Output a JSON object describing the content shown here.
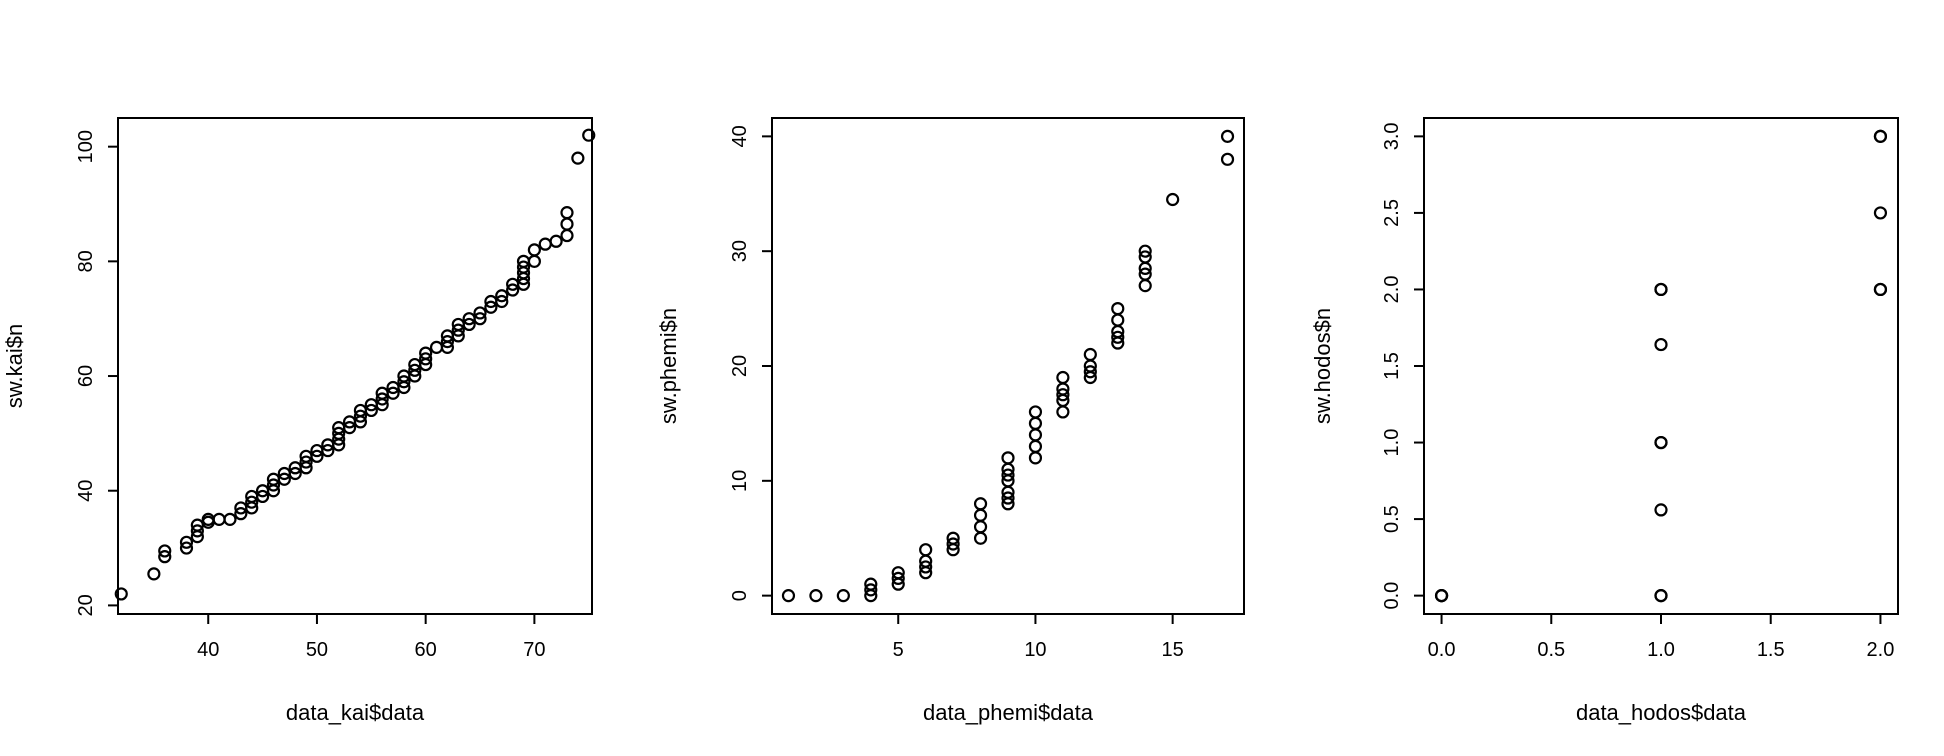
{
  "chart_data": [
    {
      "type": "scatter",
      "xlabel": "data_kai$data",
      "ylabel": "sw.kai$n",
      "xlim": [
        31.7,
        75.3
      ],
      "ylim": [
        18.5,
        105
      ],
      "xticks": [
        40,
        50,
        60,
        70
      ],
      "yticks": [
        20,
        40,
        60,
        80,
        100
      ],
      "points": [
        [
          32,
          22
        ],
        [
          35,
          25.5
        ],
        [
          36,
          28.5
        ],
        [
          36,
          29.5
        ],
        [
          38,
          30
        ],
        [
          38,
          31
        ],
        [
          39,
          32
        ],
        [
          39,
          33
        ],
        [
          39,
          34
        ],
        [
          40,
          34.5
        ],
        [
          40,
          35
        ],
        [
          41,
          35
        ],
        [
          42,
          35
        ],
        [
          43,
          36
        ],
        [
          43,
          37
        ],
        [
          44,
          37
        ],
        [
          44,
          38
        ],
        [
          44,
          39
        ],
        [
          45,
          39
        ],
        [
          45,
          40
        ],
        [
          46,
          40
        ],
        [
          46,
          41
        ],
        [
          46,
          42
        ],
        [
          47,
          42
        ],
        [
          47,
          43
        ],
        [
          48,
          43
        ],
        [
          48,
          44
        ],
        [
          49,
          44
        ],
        [
          49,
          45
        ],
        [
          49,
          46
        ],
        [
          50,
          46
        ],
        [
          50,
          47
        ],
        [
          51,
          47
        ],
        [
          51,
          48
        ],
        [
          52,
          48
        ],
        [
          52,
          49
        ],
        [
          52,
          50
        ],
        [
          52,
          51
        ],
        [
          53,
          51
        ],
        [
          53,
          52
        ],
        [
          54,
          52
        ],
        [
          54,
          53
        ],
        [
          54,
          54
        ],
        [
          55,
          54
        ],
        [
          55,
          55
        ],
        [
          56,
          55
        ],
        [
          56,
          56
        ],
        [
          56,
          57
        ],
        [
          57,
          57
        ],
        [
          57,
          58
        ],
        [
          58,
          58
        ],
        [
          58,
          59
        ],
        [
          58,
          60
        ],
        [
          59,
          60
        ],
        [
          59,
          61
        ],
        [
          59,
          62
        ],
        [
          60,
          62
        ],
        [
          60,
          63
        ],
        [
          60,
          64
        ],
        [
          61,
          65
        ],
        [
          62,
          65
        ],
        [
          62,
          66
        ],
        [
          62,
          67
        ],
        [
          63,
          67
        ],
        [
          63,
          68
        ],
        [
          63,
          69
        ],
        [
          64,
          69
        ],
        [
          64,
          70
        ],
        [
          65,
          70
        ],
        [
          65,
          71
        ],
        [
          66,
          72
        ],
        [
          66,
          73
        ],
        [
          67,
          73
        ],
        [
          67,
          74
        ],
        [
          68,
          75
        ],
        [
          68,
          76
        ],
        [
          69,
          76
        ],
        [
          69,
          77
        ],
        [
          69,
          78
        ],
        [
          69,
          79
        ],
        [
          69,
          80
        ],
        [
          70,
          80
        ],
        [
          70,
          82
        ],
        [
          71,
          83
        ],
        [
          72,
          83.5
        ],
        [
          73,
          84.5
        ],
        [
          73,
          86.5
        ],
        [
          73,
          88.5
        ],
        [
          74,
          98
        ],
        [
          75,
          102
        ]
      ]
    },
    {
      "type": "scatter",
      "xlabel": "data_phemi$data",
      "ylabel": "sw.phemi$n",
      "xlim": [
        0.4,
        17.6
      ],
      "ylim": [
        -1.6,
        41.6
      ],
      "xticks": [
        5,
        10,
        15
      ],
      "yticks": [
        0,
        10,
        20,
        30,
        40
      ],
      "points": [
        [
          1,
          0
        ],
        [
          2,
          0
        ],
        [
          3,
          0
        ],
        [
          4,
          0
        ],
        [
          4,
          0.5
        ],
        [
          4,
          1
        ],
        [
          5,
          1
        ],
        [
          5,
          1.5
        ],
        [
          5,
          2
        ],
        [
          6,
          2
        ],
        [
          6,
          2.5
        ],
        [
          6,
          3
        ],
        [
          6,
          4
        ],
        [
          7,
          4
        ],
        [
          7,
          4.5
        ],
        [
          7,
          5
        ],
        [
          8,
          5
        ],
        [
          8,
          6
        ],
        [
          8,
          7
        ],
        [
          8,
          8
        ],
        [
          9,
          8
        ],
        [
          9,
          8.5
        ],
        [
          9,
          9
        ],
        [
          9,
          10
        ],
        [
          9,
          10.5
        ],
        [
          9,
          11
        ],
        [
          9,
          12
        ],
        [
          10,
          12
        ],
        [
          10,
          13
        ],
        [
          10,
          14
        ],
        [
          10,
          15
        ],
        [
          10,
          16
        ],
        [
          11,
          16
        ],
        [
          11,
          17
        ],
        [
          11,
          17.5
        ],
        [
          11,
          18
        ],
        [
          11,
          19
        ],
        [
          12,
          19
        ],
        [
          12,
          19.5
        ],
        [
          12,
          20
        ],
        [
          12,
          21
        ],
        [
          13,
          22
        ],
        [
          13,
          22.5
        ],
        [
          13,
          23
        ],
        [
          13,
          24
        ],
        [
          13,
          25
        ],
        [
          14,
          27
        ],
        [
          14,
          28
        ],
        [
          14,
          28.5
        ],
        [
          14,
          29.5
        ],
        [
          14,
          30
        ],
        [
          15,
          34.5
        ],
        [
          17,
          38
        ],
        [
          17,
          40
        ]
      ]
    },
    {
      "type": "scatter",
      "xlabel": "data_hodos$data",
      "ylabel": "sw.hodos$n",
      "xlim": [
        -0.08,
        2.08
      ],
      "ylim": [
        -0.12,
        3.12
      ],
      "xticks": [
        0.0,
        0.5,
        1.0,
        1.5,
        2.0
      ],
      "yticks": [
        0.0,
        0.5,
        1.0,
        1.5,
        2.0,
        2.5,
        3.0
      ],
      "points": [
        [
          0,
          0
        ],
        [
          0,
          0
        ],
        [
          0,
          0
        ],
        [
          1,
          0
        ],
        [
          1,
          0
        ],
        [
          1,
          0.56
        ],
        [
          1,
          1
        ],
        [
          1,
          1
        ],
        [
          1,
          1.64
        ],
        [
          1,
          2
        ],
        [
          1,
          2
        ],
        [
          2,
          2
        ],
        [
          2,
          2
        ],
        [
          2,
          2.5
        ],
        [
          2,
          3
        ],
        [
          2,
          3
        ]
      ]
    }
  ]
}
